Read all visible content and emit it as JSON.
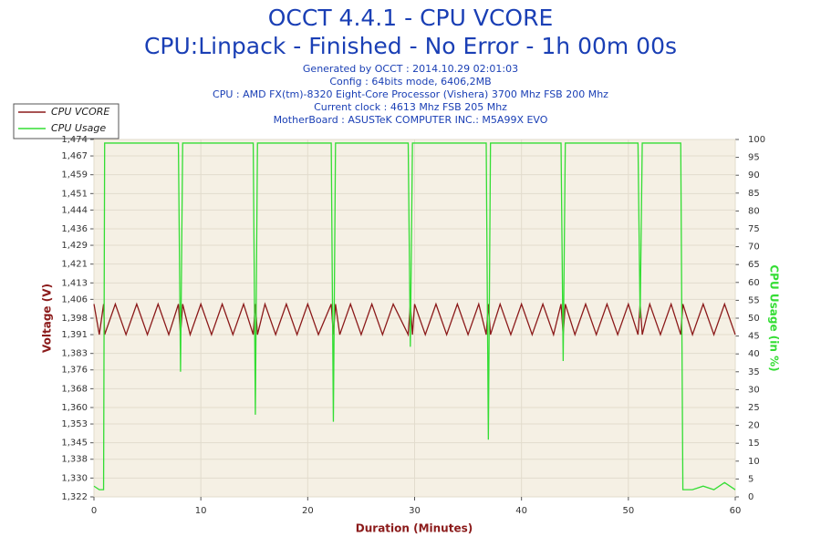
{
  "chart_data": {
    "type": "line",
    "title": "OCCT 4.4.1 - CPU VCORE",
    "subtitle": "CPU:Linpack - Finished - No Error - 1h 00m 00s",
    "info_lines": [
      "Generated by OCCT : 2014.10.29 02:01:03",
      "Config : 64bits mode, 6406,2MB",
      "CPU : AMD FX(tm)-8320 Eight-Core Processor (Vishera) 3700 Mhz FSB 200 Mhz",
      "Current clock : 4613 Mhz FSB 205 Mhz",
      "MotherBoard : ASUSTeK COMPUTER INC.: M5A99X EVO"
    ],
    "xlabel": "Duration (Minutes)",
    "ylabel": "Voltage (V)",
    "y2label": "CPU Usage (in %)",
    "legend": "top-left",
    "grid": true,
    "x": [
      0,
      0.5,
      0.9,
      1,
      2,
      3,
      4,
      5,
      6,
      7,
      7.9,
      8.1,
      8.3,
      9,
      10,
      11,
      12,
      13,
      14,
      14.9,
      15.1,
      15.3,
      16,
      17,
      18,
      19,
      20,
      21,
      22.2,
      22.4,
      22.6,
      23,
      24,
      25,
      26,
      27,
      28,
      29.4,
      29.6,
      29.8,
      30,
      31,
      32,
      33,
      34,
      35,
      36,
      36.7,
      36.9,
      37.1,
      38,
      39,
      40,
      41,
      42,
      43,
      43.7,
      43.9,
      44.1,
      45,
      46,
      47,
      48,
      49,
      50,
      50.9,
      51.1,
      51.3,
      52,
      53,
      54,
      54.9,
      55.1,
      56,
      57,
      58,
      59,
      60
    ],
    "xlim": [
      0,
      60
    ],
    "xticks": [
      0,
      10,
      20,
      30,
      40,
      50,
      60
    ],
    "ylim": [
      1.322,
      1.474
    ],
    "yticks": [
      {
        "value": 1.322,
        "label": "1,322"
      },
      {
        "value": 1.33,
        "label": "1,330"
      },
      {
        "value": 1.338,
        "label": "1,338"
      },
      {
        "value": 1.345,
        "label": "1,345"
      },
      {
        "value": 1.353,
        "label": "1,353"
      },
      {
        "value": 1.36,
        "label": "1,360"
      },
      {
        "value": 1.368,
        "label": "1,368"
      },
      {
        "value": 1.376,
        "label": "1,376"
      },
      {
        "value": 1.383,
        "label": "1,383"
      },
      {
        "value": 1.391,
        "label": "1,391"
      },
      {
        "value": 1.398,
        "label": "1,398"
      },
      {
        "value": 1.406,
        "label": "1,406"
      },
      {
        "value": 1.413,
        "label": "1,413"
      },
      {
        "value": 1.421,
        "label": "1,421"
      },
      {
        "value": 1.429,
        "label": "1,429"
      },
      {
        "value": 1.436,
        "label": "1,436"
      },
      {
        "value": 1.444,
        "label": "1,444"
      },
      {
        "value": 1.451,
        "label": "1,451"
      },
      {
        "value": 1.459,
        "label": "1,459"
      },
      {
        "value": 1.467,
        "label": "1,467"
      },
      {
        "value": 1.474,
        "label": "1,474"
      }
    ],
    "y2lim": [
      0,
      100
    ],
    "y2ticks": [
      0,
      5,
      10,
      15,
      20,
      25,
      30,
      35,
      40,
      45,
      50,
      55,
      60,
      65,
      70,
      75,
      80,
      85,
      90,
      95,
      100
    ],
    "series": [
      {
        "name": "CPU VCORE",
        "color": "#8b1a1a",
        "axis": "y",
        "values": [
          1.404,
          1.391,
          1.404,
          1.391,
          1.404,
          1.391,
          1.404,
          1.391,
          1.404,
          1.391,
          1.404,
          1.391,
          1.404,
          1.391,
          1.404,
          1.391,
          1.404,
          1.391,
          1.404,
          1.391,
          1.404,
          1.391,
          1.404,
          1.391,
          1.404,
          1.391,
          1.404,
          1.391,
          1.404,
          1.391,
          1.404,
          1.391,
          1.404,
          1.391,
          1.404,
          1.391,
          1.404,
          1.391,
          1.404,
          1.391,
          1.404,
          1.391,
          1.404,
          1.391,
          1.404,
          1.391,
          1.404,
          1.391,
          1.404,
          1.391,
          1.404,
          1.391,
          1.404,
          1.391,
          1.404,
          1.391,
          1.404,
          1.391,
          1.404,
          1.391,
          1.404,
          1.391,
          1.404,
          1.391,
          1.404,
          1.391,
          1.404,
          1.391,
          1.404,
          1.391,
          1.404,
          1.391,
          1.404,
          1.391,
          1.404,
          1.391,
          1.404,
          1.391
        ]
      },
      {
        "name": "CPU Usage",
        "color": "#33dd33",
        "axis": "y2",
        "values": [
          3,
          2,
          2,
          99,
          99,
          99,
          99,
          99,
          99,
          99,
          99,
          35,
          99,
          99,
          99,
          99,
          99,
          99,
          99,
          99,
          23,
          99,
          99,
          99,
          99,
          99,
          99,
          99,
          99,
          21,
          99,
          99,
          99,
          99,
          99,
          99,
          99,
          99,
          42,
          99,
          99,
          99,
          99,
          99,
          99,
          99,
          99,
          99,
          16,
          99,
          99,
          99,
          99,
          99,
          99,
          99,
          99,
          38,
          99,
          99,
          99,
          99,
          99,
          99,
          99,
          99,
          50,
          99,
          99,
          99,
          99,
          99,
          2,
          2,
          3,
          2,
          4,
          2
        ]
      }
    ]
  }
}
